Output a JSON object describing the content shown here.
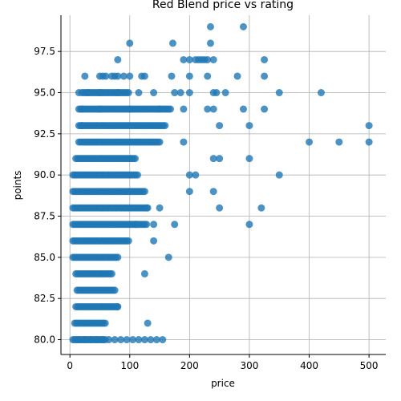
{
  "chart_data": {
    "type": "scatter",
    "title": "Red Blend price vs rating",
    "xlabel": "price",
    "ylabel": "points",
    "xlim": [
      -15,
      528
    ],
    "ylim": [
      79.1,
      99.7
    ],
    "xticks": [
      0,
      100,
      200,
      300,
      400,
      500
    ],
    "yticks": [
      80.0,
      82.5,
      85.0,
      87.5,
      90.0,
      92.5,
      95.0,
      97.5
    ],
    "ytick_labels": [
      "80.0",
      "82.5",
      "85.0",
      "87.5",
      "90.0",
      "92.5",
      "95.0",
      "97.5"
    ],
    "grid": true,
    "marker_color": "#1f77b4",
    "x": [
      100,
      172,
      80,
      190,
      200,
      210,
      215,
      220,
      225,
      230,
      240,
      325,
      235,
      290,
      235,
      25,
      50,
      55,
      60,
      70,
      75,
      80,
      90,
      100,
      120,
      125,
      170,
      200,
      230,
      280,
      325,
      15,
      30,
      50,
      80,
      115,
      140,
      175,
      185,
      200,
      240,
      245,
      260,
      350,
      420,
      20,
      50,
      100,
      150,
      190,
      230,
      240,
      290,
      325,
      20,
      250,
      300,
      400,
      450,
      500,
      500,
      190,
      240,
      250,
      300,
      200,
      210,
      350,
      200,
      240,
      130,
      150,
      250,
      320,
      110,
      140,
      175,
      300,
      140,
      165,
      125,
      80,
      130,
      15,
      25,
      35,
      45,
      55,
      65,
      75,
      85,
      95,
      105,
      115,
      125,
      135,
      145,
      155
    ],
    "y": [
      98,
      98,
      97,
      97,
      97,
      97,
      97,
      97,
      97,
      97,
      97,
      97,
      98,
      99,
      99,
      96,
      96,
      96,
      96,
      96,
      96,
      96,
      96,
      96,
      96,
      96,
      96,
      96,
      96,
      96,
      96,
      95,
      95,
      95,
      95,
      95,
      95,
      95,
      95,
      95,
      95,
      95,
      95,
      95,
      95,
      94,
      94,
      94,
      94,
      94,
      94,
      94,
      94,
      94,
      93,
      93,
      93,
      92,
      92,
      92,
      93,
      92,
      91,
      91,
      91,
      90,
      90,
      90,
      89,
      89,
      88,
      88,
      88,
      88,
      87,
      87,
      87,
      87,
      86,
      85,
      84,
      82,
      81,
      80,
      80,
      80,
      80,
      80,
      80,
      80,
      80,
      80,
      80,
      80,
      80,
      80,
      80,
      80
    ],
    "dense_clusters": [
      {
        "points": [
          80,
          81,
          82,
          83,
          84,
          85,
          86,
          87,
          88,
          89,
          90,
          91,
          92,
          93,
          94,
          95
        ],
        "x_min": [
          5,
          8,
          10,
          12,
          10,
          5,
          5,
          5,
          5,
          5,
          5,
          10,
          15,
          15,
          15,
          20
        ],
        "x_max": [
          60,
          60,
          80,
          75,
          70,
          80,
          100,
          130,
          130,
          125,
          115,
          110,
          150,
          160,
          170,
          100
        ]
      }
    ]
  }
}
